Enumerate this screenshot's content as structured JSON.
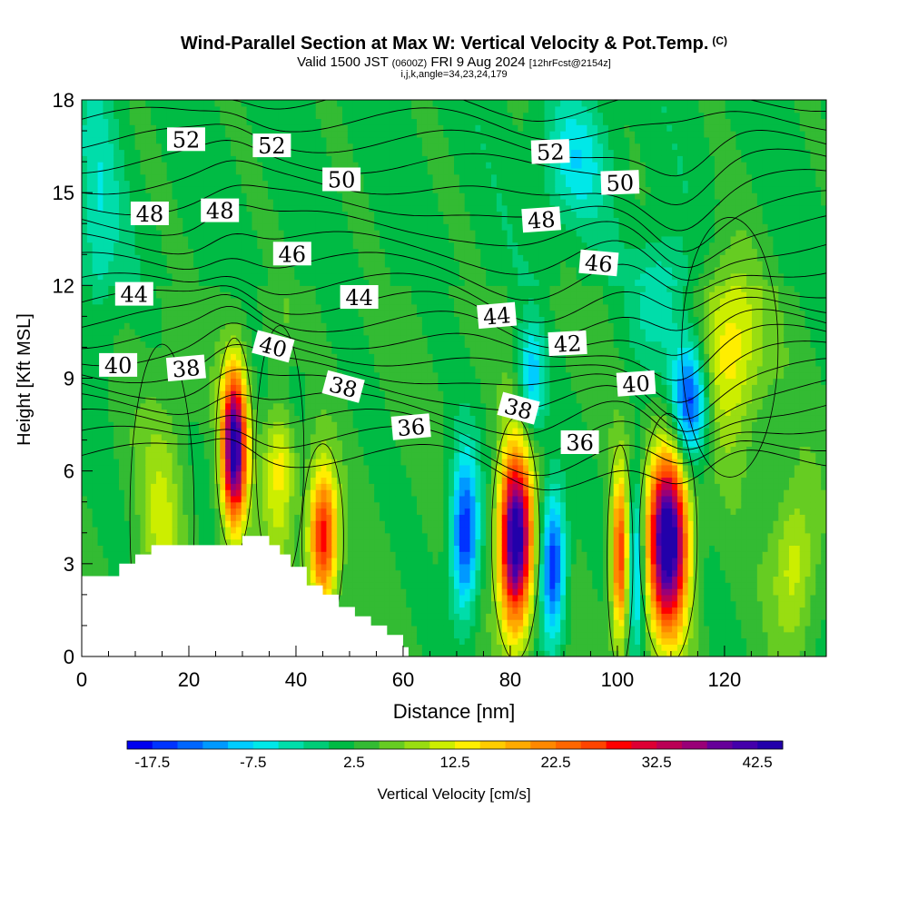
{
  "header": {
    "title": "Wind-Parallel Section at Max W: Vertical Velocity & Pot.Temp.",
    "title_mark": "(C)",
    "valid_prefix": "Valid 1500 JST",
    "valid_utc": "(0600Z)",
    "valid_date": "FRI 9 Aug 2024",
    "forecast": "[12hrFcst@2154z]",
    "indices": "i,j,k,angle=34,23,24,179"
  },
  "chart_data": {
    "type": "heatmap",
    "xlabel": "Distance [nm]",
    "ylabel": "Height [Kft MSL]",
    "xlim": [
      0,
      139
    ],
    "ylim": [
      0,
      18
    ],
    "x_ticks": [
      0,
      20,
      40,
      60,
      80,
      100,
      120
    ],
    "y_ticks": [
      0,
      3,
      6,
      9,
      12,
      15,
      18
    ],
    "colorbar": {
      "label": "Vertical Velocity [cm/s]",
      "tick_labels": [
        "-17.5",
        "-7.5",
        "2.5",
        "12.5",
        "22.5",
        "32.5",
        "42.5"
      ],
      "min": -20,
      "max": 45,
      "step": 2.5,
      "colors": [
        "#0000ee",
        "#0033ff",
        "#0066ff",
        "#0099ff",
        "#00ccff",
        "#00e8e8",
        "#00ddaa",
        "#00cc77",
        "#00bb44",
        "#33bb33",
        "#66cc22",
        "#99dd11",
        "#ccee00",
        "#ffee00",
        "#ffcc00",
        "#ffaa00",
        "#ff8800",
        "#ff6600",
        "#ff4400",
        "#ff0000",
        "#dd0033",
        "#bb0055",
        "#990077",
        "#660099",
        "#4400aa",
        "#2200aa"
      ]
    },
    "background_w": 3,
    "updrafts": [
      {
        "x": 28.5,
        "z": 6.8,
        "w": 42,
        "sx": 2.3,
        "sz": 2.5
      },
      {
        "x": 45,
        "z": 3.8,
        "w": 27,
        "sx": 2.6,
        "sz": 2.2
      },
      {
        "x": 81,
        "z": 3.8,
        "w": 45,
        "sx": 3.0,
        "sz": 2.8
      },
      {
        "x": 100.5,
        "z": 3.2,
        "w": 25,
        "sx": 1.6,
        "sz": 2.6
      },
      {
        "x": 109.5,
        "z": 3.8,
        "w": 46,
        "sx": 3.6,
        "sz": 2.9
      },
      {
        "x": 121,
        "z": 10,
        "w": 12,
        "sx": 6,
        "sz": 3
      },
      {
        "x": 37,
        "z": 6.5,
        "w": 12,
        "sx": 3,
        "sz": 3
      },
      {
        "x": 15,
        "z": 4.5,
        "w": 7,
        "sx": 4,
        "sz": 4
      },
      {
        "x": 133,
        "z": 3,
        "w": 9,
        "sx": 4,
        "sz": 2.5
      }
    ],
    "downdrafts": [
      {
        "x": 71.5,
        "z": 4.0,
        "w": -21,
        "sx": 2.6,
        "sz": 2.6
      },
      {
        "x": 88,
        "z": 3.0,
        "w": -21,
        "sx": 2.3,
        "sz": 2.4
      },
      {
        "x": 103.5,
        "z": 3.2,
        "w": -15,
        "sx": 1.5,
        "sz": 2.8
      },
      {
        "x": 113.5,
        "z": 8.3,
        "w": -22,
        "sx": 3.5,
        "sz": 2.0
      },
      {
        "x": 84,
        "z": 9.0,
        "w": -12,
        "sx": 2.5,
        "sz": 1.8
      },
      {
        "x": 38,
        "z": 8.5,
        "w": -6,
        "sx": 4,
        "sz": 1.5
      },
      {
        "x": 108,
        "z": 11.5,
        "w": -8,
        "sx": 5,
        "sz": 2
      },
      {
        "x": 3,
        "z": 14,
        "w": -6,
        "sx": 4,
        "sz": 5
      },
      {
        "x": 92,
        "z": 16,
        "w": -8,
        "sx": 6,
        "sz": 2
      }
    ],
    "terrain": [
      [
        0,
        2.6
      ],
      [
        7,
        2.6
      ],
      [
        7,
        3.0
      ],
      [
        10,
        3.0
      ],
      [
        10,
        3.3
      ],
      [
        13,
        3.3
      ],
      [
        13,
        3.6
      ],
      [
        30,
        3.6
      ],
      [
        30,
        3.9
      ],
      [
        35,
        3.9
      ],
      [
        35,
        3.6
      ],
      [
        37,
        3.6
      ],
      [
        37,
        3.3
      ],
      [
        39,
        3.3
      ],
      [
        39,
        2.9
      ],
      [
        42,
        2.9
      ],
      [
        42,
        2.3
      ],
      [
        45,
        2.3
      ],
      [
        45,
        2.0
      ],
      [
        48,
        2.0
      ],
      [
        48,
        1.6
      ],
      [
        51,
        1.6
      ],
      [
        51,
        1.3
      ],
      [
        54,
        1.3
      ],
      [
        54,
        1.0
      ],
      [
        57,
        1.0
      ],
      [
        57,
        0.7
      ],
      [
        60,
        0.7
      ],
      [
        60,
        0.3
      ],
      [
        61,
        0.3
      ],
      [
        61,
        0
      ]
    ],
    "theta_contours": {
      "unit": "label",
      "labels": [
        {
          "text": "52",
          "x": 19.5,
          "z": 16.7,
          "rot": 0
        },
        {
          "text": "52",
          "x": 35.5,
          "z": 16.5,
          "rot": 0
        },
        {
          "text": "52",
          "x": 87.5,
          "z": 16.3,
          "rot": -2
        },
        {
          "text": "50",
          "x": 48.5,
          "z": 15.4,
          "rot": 0
        },
        {
          "text": "50",
          "x": 100.5,
          "z": 15.3,
          "rot": -2
        },
        {
          "text": "48",
          "x": 12.7,
          "z": 14.3,
          "rot": 0
        },
        {
          "text": "48",
          "x": 25.8,
          "z": 14.4,
          "rot": 0
        },
        {
          "text": "48",
          "x": 85.8,
          "z": 14.1,
          "rot": -4
        },
        {
          "text": "46",
          "x": 39.3,
          "z": 13.0,
          "rot": 0
        },
        {
          "text": "46",
          "x": 96.5,
          "z": 12.7,
          "rot": 5
        },
        {
          "text": "44",
          "x": 9.8,
          "z": 11.7,
          "rot": 0
        },
        {
          "text": "44",
          "x": 51.8,
          "z": 11.6,
          "rot": 0
        },
        {
          "text": "44",
          "x": 77.5,
          "z": 11.0,
          "rot": -5
        },
        {
          "text": "42",
          "x": 90.7,
          "z": 10.1,
          "rot": -3
        },
        {
          "text": "40",
          "x": 6.8,
          "z": 9.4,
          "rot": 0
        },
        {
          "text": "40",
          "x": 35.7,
          "z": 10.0,
          "rot": 15
        },
        {
          "text": "40",
          "x": 103.5,
          "z": 8.8,
          "rot": -4
        },
        {
          "text": "38",
          "x": 19.5,
          "z": 9.3,
          "rot": -5
        },
        {
          "text": "38",
          "x": 48.8,
          "z": 8.7,
          "rot": 15
        },
        {
          "text": "38",
          "x": 81.5,
          "z": 8.0,
          "rot": 15
        },
        {
          "text": "36",
          "x": 61.5,
          "z": 7.4,
          "rot": -5
        },
        {
          "text": "36",
          "x": 93,
          "z": 6.9,
          "rot": 0
        }
      ]
    },
    "zero_w_contours": 8
  }
}
